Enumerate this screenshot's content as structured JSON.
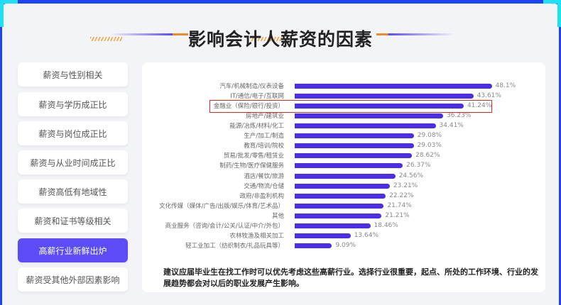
{
  "title": "影响会计人薪资的因素",
  "sidebar": {
    "items": [
      {
        "label": "薪资与性别相关",
        "active": false
      },
      {
        "label": "薪资与学历成正比",
        "active": false
      },
      {
        "label": "薪资与岗位成正比",
        "active": false
      },
      {
        "label": "薪资与从业时间成正比",
        "active": false
      },
      {
        "label": "薪资高低有地域性",
        "active": false
      },
      {
        "label": "薪资和证书等级相关",
        "active": false
      },
      {
        "label": "高薪行业新鲜出炉",
        "active": true
      },
      {
        "label": "薪资受其他外部因素影响",
        "active": false
      }
    ]
  },
  "chart_data": {
    "type": "bar",
    "orientation": "horizontal",
    "categories": [
      "汽车/机械制造/仪表设备",
      "IT/通信/电子/互联网",
      "金融业（保险/银行/投资）",
      "房地产/建筑业",
      "能源/冶炼/材料/化工",
      "生产/加工/制造",
      "教育/培训/院校",
      "贸易/批发/零售/租赁业",
      "制药/生物/医疗保健服务",
      "酒店/餐饮/旅游",
      "交通/物流/仓储",
      "政府/非盈利机构",
      "文化传媒（媒体/广告/出版/娱乐/体育/艺术品）",
      "其他",
      "商业服务（咨询/会计/公关/认证/中介/外包）",
      "农林牧渔及相关加工",
      "轻工业加工（纺织制衣/礼品玩具等）"
    ],
    "values": [
      48.1,
      43.61,
      41.24,
      36.23,
      34.41,
      29.08,
      29.03,
      28.62,
      26.37,
      24.56,
      23.21,
      22.22,
      21.74,
      21.21,
      18.46,
      13.64,
      9.09
    ],
    "labels": [
      "48.1%",
      "43.61%",
      "41.24%",
      "36.23%",
      "34.41%",
      "29.08%",
      "29.03%",
      "28.62%",
      "26.37%",
      "24.56%",
      "23.21%",
      "22.22%",
      "21.74%",
      "21.21%",
      "18.46%",
      "13.64%",
      "9.09%"
    ],
    "highlighted_index": 2,
    "bar_color": "#4a2ee6",
    "highlight_color": "#e02828"
  },
  "note": "建议应届毕业生在找工作时可以优先考虑这些高薪行业。选择行业很重要，起点、所处的工作环境、行业的发展趋势都会对以后的职业发展产生影响。",
  "colors": {
    "accent": "#5b4cf5",
    "frame": "#1d44f0",
    "corner": "#1fe0f5"
  }
}
